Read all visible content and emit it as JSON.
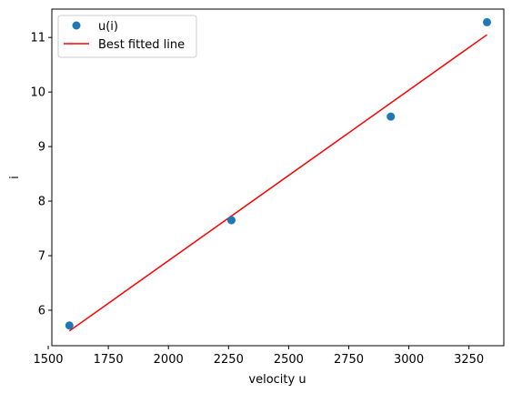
{
  "chart_data": {
    "type": "scatter",
    "xlabel": "velocity u",
    "ylabel": "i",
    "xlim": [
      1515,
      3395
    ],
    "ylim": [
      5.35,
      11.52
    ],
    "x_ticks": [
      1500,
      1750,
      2000,
      2250,
      2500,
      2750,
      3000,
      3250
    ],
    "y_ticks": [
      6,
      7,
      8,
      9,
      10,
      11
    ],
    "grid": false,
    "legend_position": "top-left",
    "series": [
      {
        "name": "u(i)",
        "kind": "scatter",
        "color": "#1f77b4",
        "points": [
          {
            "x": 1588,
            "y": 5.72
          },
          {
            "x": 2262,
            "y": 7.65
          },
          {
            "x": 2925,
            "y": 9.55
          },
          {
            "x": 3325,
            "y": 11.28
          }
        ]
      },
      {
        "name": "Best fitted line",
        "kind": "line",
        "color": "#ff0000",
        "points": [
          {
            "x": 1588,
            "y": 5.62
          },
          {
            "x": 3325,
            "y": 11.05
          }
        ]
      }
    ]
  }
}
